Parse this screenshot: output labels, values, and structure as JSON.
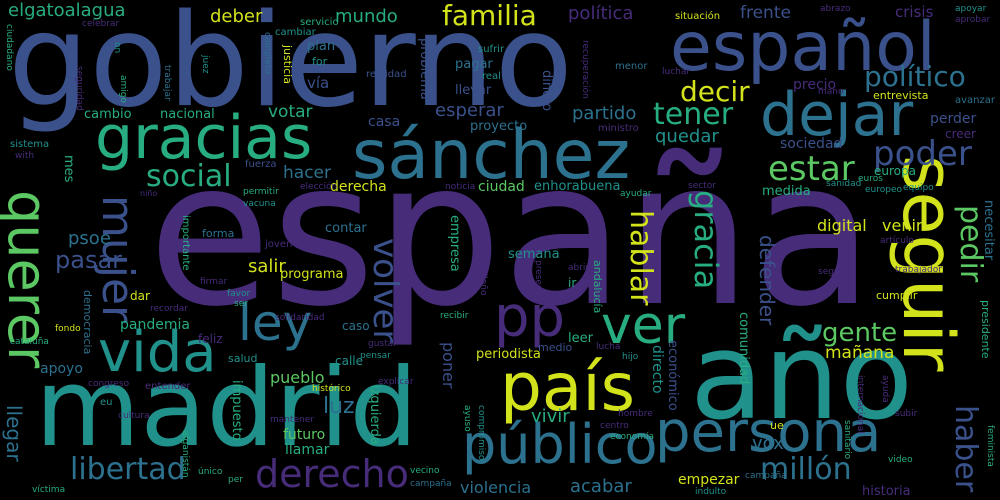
{
  "colors": {
    "background": "#000000",
    "purple": "#472c7a",
    "indigo": "#3b518b",
    "blue": "#2c718e",
    "teal": "#21918c",
    "green": "#27ad81",
    "lime": "#5cc863",
    "yellow": "#d2e21b",
    "deep": "#440154"
  },
  "words": {
    "espana": "españa",
    "gobierno": "gobierno",
    "madrid": "madrid",
    "ano": "año",
    "espanol": "español",
    "seguir": "seguir",
    "sanchez": "sánchez",
    "gracias": "gracias",
    "dejar": "dejar",
    "pais": "país",
    "publico": "público",
    "persona": "persona",
    "querer": "querer",
    "vida": "vida",
    "mujer": "mujer",
    "ley": "ley",
    "pp": "pp",
    "ver": "ver",
    "volver": "volver",
    "poder": "poder",
    "estar": "estar",
    "tener": "tener",
    "decir": "decir",
    "politico": "político",
    "familia": "familia",
    "social": "social",
    "libertad": "libertad",
    "derecho": "derecho",
    "millon": "millón",
    "haber": "haber",
    "pedir": "pedir",
    "hablar": "hablar",
    "gracia": "gracia",
    "gente": "gente",
    "elgatoalagua": "elgatoalagua",
    "deber": "deber",
    "mundo": "mundo",
    "politica": "política",
    "frente": "frente",
    "crisis": "crisis",
    "votar": "votar",
    "nacional": "nacional",
    "cambio": "cambio",
    "casa": "casa",
    "esperar": "esperar",
    "partido": "partido",
    "quedar": "quedar",
    "sociedad": "sociedad",
    "hacer": "hacer",
    "derecha": "derecha",
    "ciudad": "ciudad",
    "enhorabuena": "enhorabuena",
    "psoe": "psoe",
    "pasar": "pasar",
    "semana": "semana",
    "digital": "digital",
    "venir": "venir",
    "salir": "salir",
    "contar": "contar",
    "programa": "programa",
    "defender": "defender",
    "pandemia": "pandemia",
    "apoyo": "apoyo",
    "pueblo": "pueblo",
    "luz": "luz",
    "futuro": "futuro",
    "llamar": "llamar",
    "vivir": "vivir",
    "violencia": "violencia",
    "acabar": "acabar",
    "empezar": "empezar",
    "vox": "vox",
    "manana": "mañana",
    "comunidad": "comunidad",
    "periodista": "periodista",
    "poner": "poner",
    "directo": "directo",
    "economico": "económico",
    "leer": "leer",
    "medio": "medio",
    "llegar": "llegar",
    "izquierda": "izquierda",
    "impuesto": "impuesto",
    "caso": "caso",
    "dar": "dar",
    "feliz": "feliz",
    "democracia": "democracia",
    "plan": "plan",
    "via": "vía",
    "justicia": "justicia",
    "pagar": "pagar",
    "llevar": "llevar",
    "proyecto": "proyecto",
    "dinero": "dinero",
    "problema": "problema",
    "precio": "precio",
    "entrevista": "entrevista",
    "perder": "perder",
    "creer": "creer",
    "europa": "europa",
    "presidente": "presidente",
    "necesitar": "necesitar",
    "cumplir": "cumplir",
    "historia": "historia",
    "ganar": "ganar",
    "calle": "calle",
    "salud": "salud",
    "fuerza": "fuerza",
    "mes": "mes",
    "situacion": "situación",
    "servicio": "servicio",
    "sufrir": "sufrir",
    "real": "real",
    "realidad": "realidad",
    "cambiar": "cambiar",
    "trabajar": "trabajar",
    "celebrar": "celebrar",
    "ciudadano": "ciudadano",
    "seguridad": "seguridad",
    "amigo": "amigo",
    "sistema": "sistema",
    "abrazo": "abrazo",
    "apoyar": "apoyar",
    "aprobar": "aprobar",
    "avanzar": "avanzar",
    "menor": "menor",
    "luchar": "luchar",
    "recuperacion": "recuperación",
    "ministro": "ministro",
    "completo": "completo",
    "juez": "juez",
    "mano": "mano",
    "noticia": "noticia",
    "eleccion": "elección",
    "permitir": "permitir",
    "vacuna": "vacuna",
    "forma": "forma",
    "joven": "joven",
    "importante": "importante",
    "nino": "niño",
    "sector": "sector",
    "medida": "medida",
    "sanidad": "sanidad",
    "euros": "euros",
    "europeo": "europeo",
    "equipo": "equipo",
    "articulo": "artículo",
    "seguro": "seguro",
    "trabajador": "trabajador",
    "ayudar": "ayudar",
    "noche": "noche",
    "madrileno": "madrileño",
    "presentar": "presentar",
    "abrir": "abrir",
    "ir": "ir",
    "andalucia": "andalucía",
    "empresa": "empresa",
    "recibir": "recibir",
    "lucha": "lucha",
    "hijo": "hijo",
    "gustar": "gustar",
    "pensar": "pensar",
    "solidaridad": "solidaridad",
    "ser": "ser",
    "favor": "favor",
    "firmar": "firmar",
    "recordar": "recordar",
    "fondo": "fondo",
    "cataluna": "cataluña",
    "congreso": "congreso",
    "entender": "entender",
    "historico": "histórico",
    "explicar": "explicar",
    "eu": "eu",
    "cultura": "cultura",
    "afganistan": "afganistán",
    "victima": "víctima",
    "unico": "único",
    "per": "per",
    "mantener": "mantener",
    "vecino": "vecino",
    "campana": "campaña",
    "ayuso": "ayuso",
    "compromiso": "compromiso",
    "hombre": "hombre",
    "centro": "centro",
    "economia": "economía",
    "ue": "ue",
    "indulto": "indulto",
    "internacional": "internacional",
    "subir": "subir",
    "ayuda": "ayuda",
    "sanitario": "sanitario",
    "video": "video",
    "feminista": "feminista",
    "with": "with",
    "on": "on",
    "for": "for"
  }
}
